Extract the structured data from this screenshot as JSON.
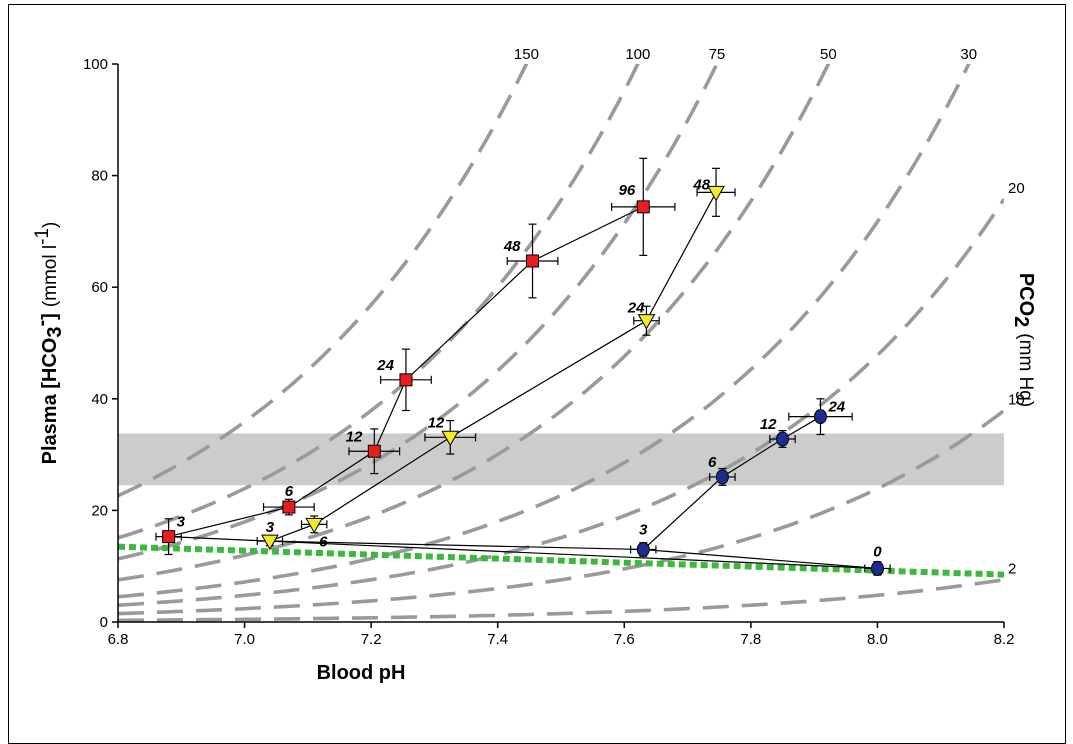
{
  "chart_data": {
    "type": "scatter",
    "xlabel": "Blood pH",
    "ylabel_bold": "Plasma [HCO",
    "ylabel_sub": "3",
    "ylabel_sup": "-",
    "ylabel_close": "]",
    "ylabel_unit": "(mmol l",
    "ylabel_unit_sup": "-1",
    "ylabel_unit_close": ")",
    "right_label_bold": "PCO",
    "right_label_sub": "2",
    "right_label_unit": "(mm Hg)",
    "xlim": [
      6.8,
      8.2
    ],
    "ylim": [
      0,
      100
    ],
    "x_ticks": [
      "6.8",
      "7.0",
      "7.2",
      "7.4",
      "7.6",
      "7.8",
      "8.0",
      "8.2"
    ],
    "y_ticks": [
      "0",
      "20",
      "40",
      "60",
      "80",
      "100"
    ],
    "grid": false,
    "shaded_band": {
      "y_range": [
        24.5,
        33.8
      ],
      "color": "#cccccc"
    },
    "isopleth_color": "#9a9a9a",
    "isopleths": [
      {
        "label": "150",
        "pco2": 150
      },
      {
        "label": "100",
        "pco2": 100
      },
      {
        "label": "75",
        "pco2": 75
      },
      {
        "label": "50",
        "pco2": 50
      },
      {
        "label": "30",
        "pco2": 30
      },
      {
        "label": "20",
        "pco2": 20
      },
      {
        "label": "10",
        "pco2": 10
      },
      {
        "label": "2",
        "pco2": 2
      }
    ],
    "buffer_line": {
      "color": "#3cb83c",
      "x": [
        6.8,
        8.2
      ],
      "y": [
        13.5,
        8.5
      ]
    },
    "series": [
      {
        "marker": "square",
        "color": "#e81e1e",
        "points": [
          {
            "label": "3",
            "x": 6.88,
            "y": 15.3,
            "xerr": 0.02,
            "yerr": 3.2
          },
          {
            "label": "6",
            "x": 7.07,
            "y": 20.6,
            "xerr": 0.04,
            "yerr": 1.4
          },
          {
            "label": "12",
            "x": 7.205,
            "y": 30.6,
            "xerr": 0.04,
            "yerr": 4.0
          },
          {
            "label": "24",
            "x": 7.255,
            "y": 43.4,
            "xerr": 0.04,
            "yerr": 5.5
          },
          {
            "label": "48",
            "x": 7.455,
            "y": 64.7,
            "xerr": 0.04,
            "yerr": 6.6
          },
          {
            "label": "96",
            "x": 7.63,
            "y": 74.4,
            "xerr": 0.05,
            "yerr": 8.7
          }
        ]
      },
      {
        "marker": "triangle-down",
        "color": "#f3ea2a",
        "points": [
          {
            "label": "3",
            "x": 7.04,
            "y": 14.5,
            "xerr": 0.02,
            "yerr": 0.8
          },
          {
            "label": "6",
            "x": 7.11,
            "y": 17.5,
            "xerr": 0.02,
            "yerr": 1.5
          },
          {
            "label": "12",
            "x": 7.325,
            "y": 33.1,
            "xerr": 0.04,
            "yerr": 3.0
          },
          {
            "label": "24",
            "x": 7.635,
            "y": 54.0,
            "xerr": 0.02,
            "yerr": 2.6
          },
          {
            "label": "48",
            "x": 7.745,
            "y": 77.0,
            "xerr": 0.03,
            "yerr": 4.3
          }
        ]
      },
      {
        "marker": "circle",
        "color": "#1c2d8f",
        "points": [
          {
            "label": "0",
            "x": 8.0,
            "y": 9.6,
            "xerr": 0.02,
            "yerr": 1.2
          },
          {
            "label": "3",
            "x": 7.63,
            "y": 13.0,
            "xerr": 0.02,
            "yerr": 1.2
          },
          {
            "label": "6",
            "x": 7.755,
            "y": 26.0,
            "xerr": 0.02,
            "yerr": 1.5
          },
          {
            "label": "12",
            "x": 7.85,
            "y": 32.8,
            "xerr": 0.02,
            "yerr": 1.5
          },
          {
            "label": "24",
            "x": 7.91,
            "y": 36.8,
            "xerr": 0.05,
            "yerr": 3.2
          }
        ]
      }
    ],
    "connections": [
      {
        "series": 0,
        "order": [
          0,
          1,
          2,
          3,
          4,
          5
        ]
      },
      {
        "series": 1,
        "order": [
          0,
          1,
          2,
          3,
          4
        ]
      },
      {
        "series": 2,
        "order": [
          1,
          2,
          3,
          4
        ]
      },
      {
        "from": [
          0,
          0
        ],
        "to": [
          2,
          0
        ]
      },
      {
        "from": [
          1,
          0
        ],
        "to": [
          2,
          1
        ]
      },
      {
        "from": [
          2,
          1
        ],
        "to": [
          2,
          0
        ]
      }
    ]
  }
}
